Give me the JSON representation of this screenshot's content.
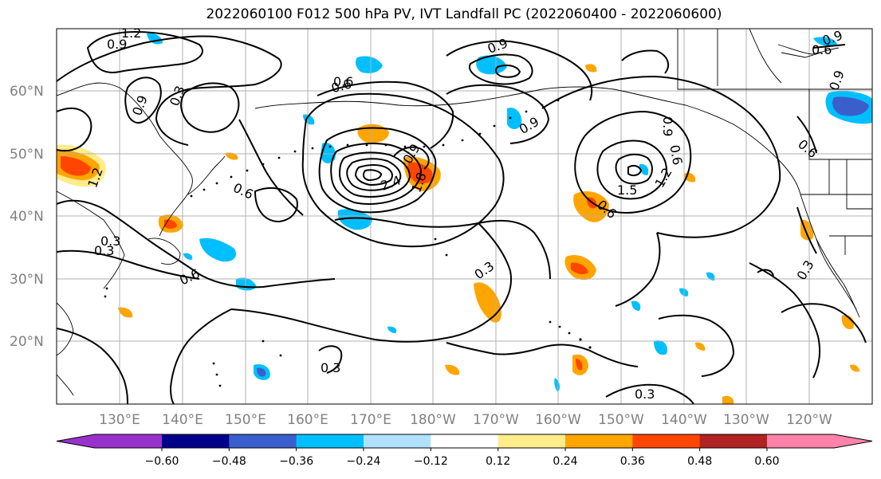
{
  "title": "2022060100 F012 500 hPa PV, IVT Landfall PC (2022060400 - 2022060600)",
  "lat_labels": [
    "60°N",
    "50°N",
    "40°N",
    "30°N",
    "20°N"
  ],
  "lon_labels": [
    "130°E",
    "140°E",
    "150°E",
    "160°E",
    "170°E",
    "180°W",
    "170°W",
    "160°W",
    "150°W",
    "140°W",
    "130°W",
    "120°W"
  ],
  "colorbar": {
    "colors": [
      "#9932cc",
      "#00008b",
      "#3a5fcd",
      "#00bfff",
      "#b0e2ff",
      "#ffffff",
      "#ffec8b",
      "#ffa500",
      "#ff4500",
      "#b22222",
      "#ff82ab"
    ],
    "tick_labels": [
      "−0.60",
      "−0.48",
      "−0.36",
      "−0.24",
      "−0.12",
      "0.12",
      "0.24",
      "0.36",
      "0.48",
      "0.60"
    ]
  },
  "contour_labels": [
    "1.2",
    "0.9",
    "0.9",
    "0.3",
    "0.6",
    "0.9",
    "0.3",
    "0.6",
    "0.9",
    "0.9",
    "0.6",
    "1.2",
    "0.9",
    "0.6",
    "0.6",
    "0.6",
    "2.4",
    "1.8",
    "0.9",
    "1.5",
    "1.2",
    "0.6",
    "0.9",
    "0.3",
    "0.3",
    "0.3",
    "0.6",
    "0.3",
    "0.3"
  ]
}
